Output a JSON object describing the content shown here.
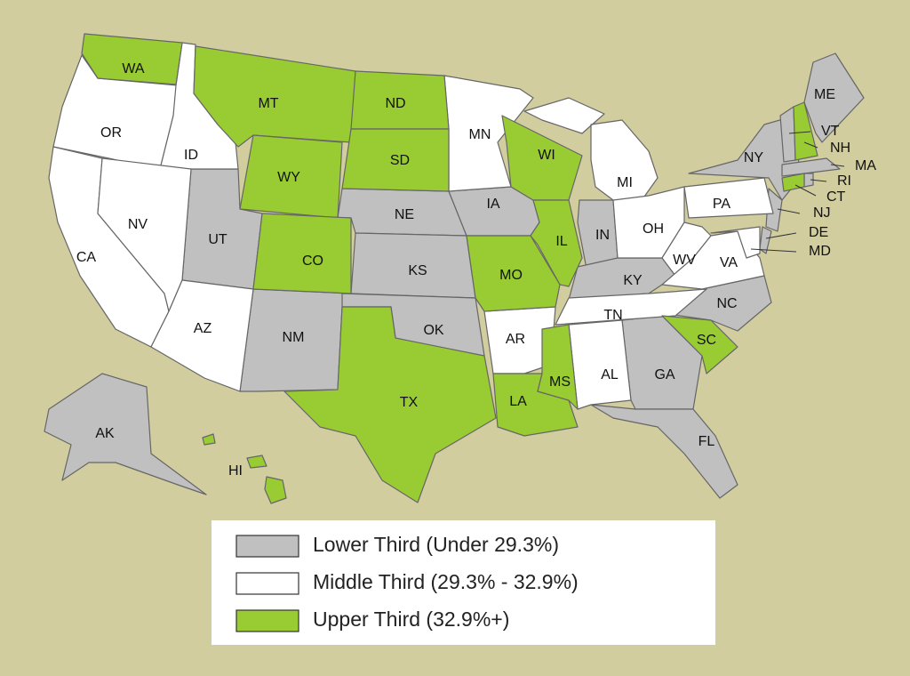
{
  "map": {
    "legend": [
      {
        "label": "Lower Third (Under 29.3%)",
        "color": "#c0c0c0",
        "states": [
          "UT",
          "NM",
          "NE",
          "KS",
          "OK",
          "IA",
          "IN",
          "KY",
          "NC",
          "GA",
          "FL",
          "NY",
          "ME",
          "MA",
          "VT",
          "RI",
          "NJ",
          "DE",
          "AK"
        ]
      },
      {
        "label": "Middle Third (29.3% - 32.9%)",
        "color": "#ffffff",
        "states": [
          "OR",
          "ID",
          "CA",
          "NV",
          "AZ",
          "MN",
          "MI",
          "OH",
          "PA",
          "WV",
          "VA",
          "MD",
          "TN",
          "AR",
          "AL"
        ]
      },
      {
        "label": "Upper Third (32.9%+)",
        "color": "#99cc33",
        "states": [
          "WA",
          "MT",
          "ND",
          "SD",
          "WY",
          "CO",
          "WI",
          "IL",
          "MO",
          "TX",
          "LA",
          "MS",
          "SC",
          "NH",
          "CT",
          "HI"
        ]
      }
    ]
  }
}
